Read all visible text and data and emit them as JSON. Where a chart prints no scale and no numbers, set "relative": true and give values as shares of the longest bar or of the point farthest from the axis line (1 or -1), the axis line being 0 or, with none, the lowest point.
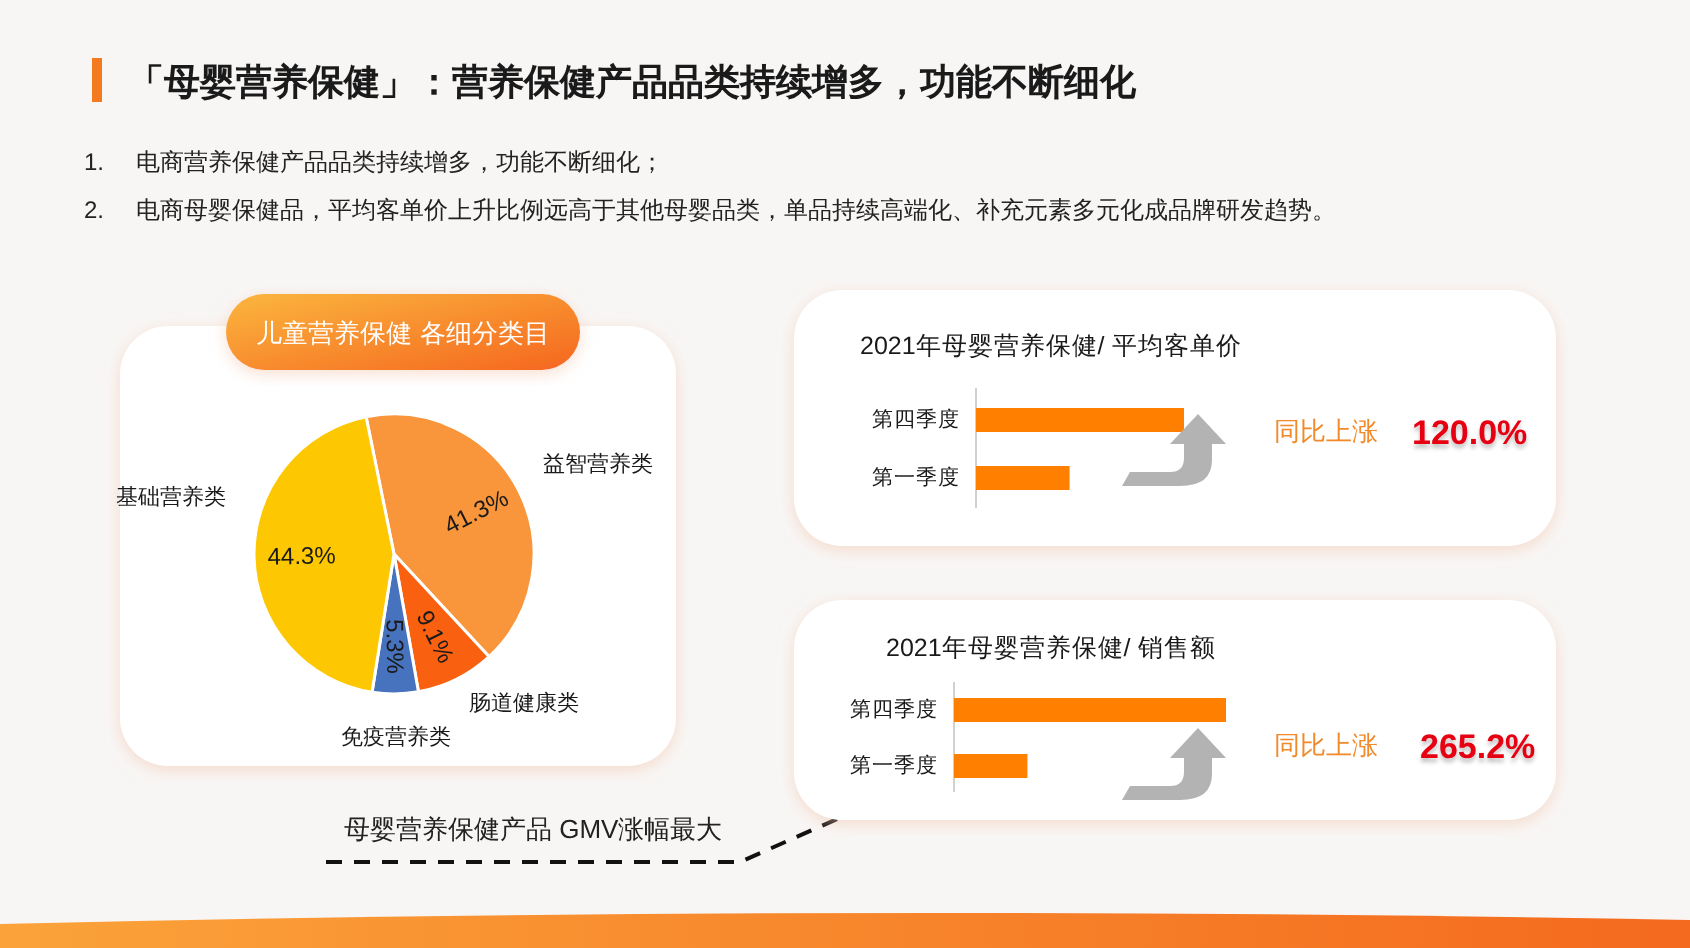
{
  "chart_data": [
    {
      "type": "other",
      "title": "「母婴营养保健」：营养保健产品品类持续增多，功能不断细化",
      "annotations": [
        "1. 电商营养保健产品品类持续增多，功能不断细化；",
        "2. 电商母婴保健品，平均客单价上升比例远高于其他母婴品类，单品持续高端化、补充元素多元化成品牌研发趋势。",
        "母婴营养保健产品 GMV涨幅最大"
      ]
    },
    {
      "type": "pie",
      "title": "儿童营养保健 各细分类目",
      "categories": [
        "益智营养类",
        "肠道健康类",
        "免疫营养类",
        "基础营养类"
      ],
      "values": [
        41.3,
        9.1,
        5.3,
        44.3
      ],
      "colors": [
        "#f9963b",
        "#f9600f",
        "#4773be",
        "#fdc802"
      ],
      "value_labels": [
        "41.3%",
        "9.1%",
        "5.3%",
        "44.3%"
      ]
    },
    {
      "type": "bar",
      "orientation": "horizontal",
      "relative": true,
      "title": "2021年母婴营养保健/ 平均客单价",
      "categories": [
        "第四季度",
        "第一季度"
      ],
      "values": [
        1,
        0.45
      ],
      "color": "#ff8000",
      "annotations": [
        "同比上涨",
        "120.0%"
      ]
    },
    {
      "type": "bar",
      "orientation": "horizontal",
      "relative": true,
      "title": "2021年母婴营养保健/ 销售额",
      "categories": [
        "第四季度",
        "第一季度"
      ],
      "values": [
        1,
        0.27
      ],
      "color": "#ff8000",
      "annotations": [
        "同比上涨",
        "265.2%"
      ]
    }
  ]
}
